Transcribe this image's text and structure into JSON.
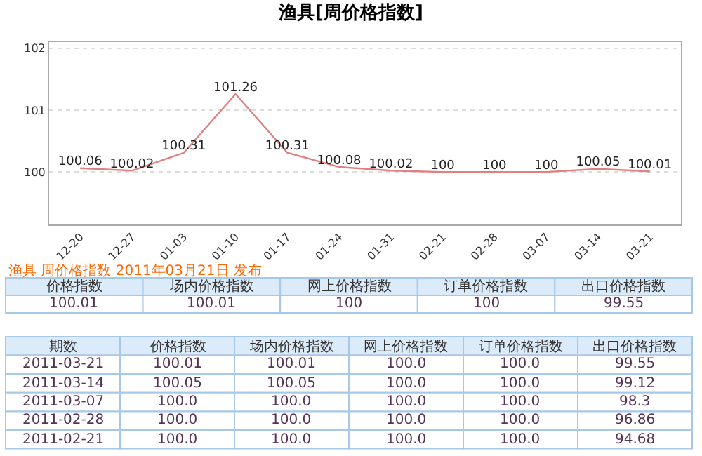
{
  "chart_data": {
    "type": "line",
    "title": "渔具[周价格指数]",
    "categories": [
      "12-20",
      "12-27",
      "01-03",
      "01-10",
      "01-17",
      "01-24",
      "01-31",
      "02-21",
      "02-28",
      "03-07",
      "03-14",
      "03-21"
    ],
    "series": [
      {
        "color": "#e08080",
        "values": [
          100.06,
          100.02,
          100.31,
          101.26,
          100.31,
          100.08,
          100.02,
          100,
          100,
          100,
          100.05,
          100.01
        ]
      }
    ],
    "ylim": [
      99.15,
      102.1
    ],
    "yticks": [
      100,
      101,
      102
    ],
    "grid": "y",
    "data_labels": true,
    "marker": "none",
    "line_style": "solid",
    "legend": false,
    "annotations": [
      "渔具 周价格指数 2011年03月21日 发布",
      "价格指数",
      "场内价格指数",
      "网上价格指数",
      "订单价格指数",
      "出口价格指数",
      "100.01",
      "100.01",
      "100",
      "100",
      "99.55",
      "期数",
      "价格指数",
      "场内价格指数",
      "网上价格指数",
      "订单价格指数",
      "出口价格指数",
      "2011-03-21",
      "100.01",
      "100.01",
      "100.0",
      "100.0",
      "99.55",
      "2011-03-14",
      "100.05",
      "100.05",
      "100.0",
      "100.0",
      "99.12",
      "2011-03-07",
      "100.0",
      "100.0",
      "100.0",
      "100.0",
      "98.3",
      "2011-02-28",
      "100.0",
      "100.0",
      "100.0",
      "100.0",
      "96.86",
      "2011-02-21",
      "100.0",
      "100.0",
      "100.0",
      "100.0",
      "94.68"
    ]
  }
}
